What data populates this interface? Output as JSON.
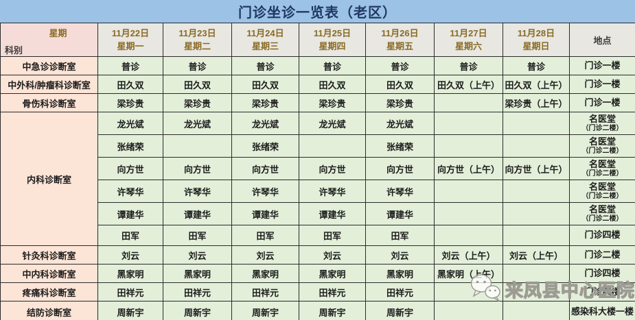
{
  "title": "门诊坐诊一览表（老区）",
  "colors": {
    "title_bar": "#9cc2e5",
    "title_text": "#1f3864",
    "date_bg": "#e8e7e1",
    "date_text": "#8a6b26",
    "dept_bg": "#fce4d6",
    "corner_bg": "#f6dcd8",
    "cell_bg": "#e3efd9",
    "cell_text": "#1c1c1c",
    "border": "#2a2a2a"
  },
  "header": {
    "week_label": "星期",
    "dept_label": "科别",
    "location_label": "地点",
    "days": [
      {
        "date": "11月22日",
        "weekday": "星期一"
      },
      {
        "date": "11月23日",
        "weekday": "星期二"
      },
      {
        "date": "11月24日",
        "weekday": "星期三"
      },
      {
        "date": "11月25日",
        "weekday": "星期四"
      },
      {
        "date": "11月26日",
        "weekday": "星期五"
      },
      {
        "date": "11月27日",
        "weekday": "星期六"
      },
      {
        "date": "11月28日",
        "weekday": "星期日"
      }
    ]
  },
  "rows": [
    {
      "dept": "中急诊诊断室",
      "rowspan": 1,
      "cells": [
        "普诊",
        "普诊",
        "普诊",
        "普诊",
        "普诊",
        "普诊",
        "普诊"
      ],
      "location": "门诊一楼",
      "location_sub": ""
    },
    {
      "dept": "中外科/肿瘤科诊断室",
      "rowspan": 1,
      "cells": [
        "田久双",
        "田久双",
        "田久双",
        "田久双",
        "田久双",
        "田久双（上午）",
        "田久双（上午）"
      ],
      "location": "门诊一楼",
      "location_sub": ""
    },
    {
      "dept": "骨伤科诊断室",
      "rowspan": 1,
      "cells": [
        "梁珍贵",
        "梁珍贵",
        "梁珍贵",
        "梁珍贵",
        "梁珍贵",
        "",
        "梁珍贵（上午）"
      ],
      "location": "门诊一楼",
      "location_sub": ""
    },
    {
      "dept": "内科诊断室",
      "rowspan": 6,
      "cells": [
        "龙光斌",
        "龙光斌",
        "龙光斌",
        "龙光斌",
        "龙光斌",
        "",
        ""
      ],
      "location": "名医堂",
      "location_sub": "（门诊二楼）"
    },
    {
      "dept": null,
      "rowspan": 0,
      "cells": [
        "张绪荣",
        "",
        "张绪荣",
        "",
        "张绪荣",
        "",
        ""
      ],
      "location": "名医堂",
      "location_sub": "（门诊二楼）"
    },
    {
      "dept": null,
      "rowspan": 0,
      "cells": [
        "向方世",
        "向方世",
        "向方世",
        "向方世",
        "向方世",
        "向方世（上午）",
        "向方世（上午）"
      ],
      "location": "名医堂",
      "location_sub": "（门诊二楼）"
    },
    {
      "dept": null,
      "rowspan": 0,
      "cells": [
        "许琴华",
        "许琴华",
        "许琴华",
        "许琴华",
        "许琴华",
        "",
        ""
      ],
      "location": "名医堂",
      "location_sub": "（门诊二楼）"
    },
    {
      "dept": null,
      "rowspan": 0,
      "cells": [
        "谭建华",
        "谭建华",
        "谭建华",
        "谭建华",
        "谭建华",
        "",
        ""
      ],
      "location": "名医堂",
      "location_sub": "（门诊二楼）"
    },
    {
      "dept": null,
      "rowspan": 0,
      "cells": [
        "田军",
        "田军",
        "田军",
        "田军",
        "田军",
        "",
        ""
      ],
      "location": "门诊四楼",
      "location_sub": ""
    },
    {
      "dept": "针灸科诊断室",
      "rowspan": 1,
      "cells": [
        "刘云",
        "刘云",
        "刘云",
        "刘云",
        "刘云",
        "刘云（上午）",
        "刘云（上午）"
      ],
      "location": "门诊二楼",
      "location_sub": ""
    },
    {
      "dept": "中内科诊断室",
      "rowspan": 1,
      "cells": [
        "黑家明",
        "黑家明",
        "黑家明",
        "黑家明",
        "黑家明",
        "黑家明（上午）",
        ""
      ],
      "location": "门诊四楼",
      "location_sub": ""
    },
    {
      "dept": "疼痛科诊断室",
      "rowspan": 1,
      "cells": [
        "田祥元",
        "田祥元",
        "田祥元",
        "田祥元",
        "田祥元",
        "",
        ""
      ],
      "location": "门诊四楼",
      "location_sub": ""
    },
    {
      "dept": "结防诊断室",
      "rowspan": 1,
      "cells": [
        "周新宇",
        "周新宇",
        "周新宇",
        "周新宇",
        "周新宇",
        "",
        ""
      ],
      "location": "感染科大楼一楼",
      "location_sub": ""
    }
  ],
  "watermark": {
    "text": "来凤县中心医院",
    "icon": "wechat-icon"
  }
}
